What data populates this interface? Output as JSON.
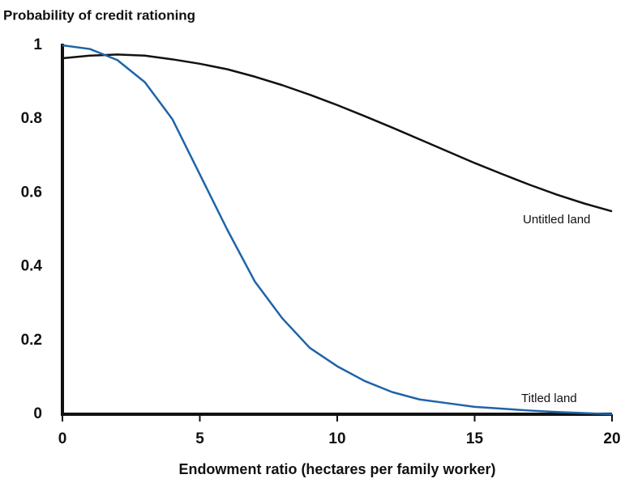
{
  "chart_data": {
    "type": "line",
    "title": "Probability of credit rationing",
    "x_label": "Endowment ratio (hectares per family worker)",
    "x": [
      0,
      1,
      2,
      3,
      4,
      5,
      6,
      7,
      8,
      9,
      10,
      11,
      12,
      13,
      14,
      15,
      16,
      17,
      18,
      19,
      20
    ],
    "series": [
      {
        "name": "Untitled land",
        "color": "#111111",
        "values": [
          0.965,
          0.972,
          0.975,
          0.972,
          0.962,
          0.95,
          0.935,
          0.915,
          0.892,
          0.866,
          0.838,
          0.808,
          0.777,
          0.745,
          0.713,
          0.681,
          0.651,
          0.622,
          0.595,
          0.571,
          0.55
        ]
      },
      {
        "name": "Titled land",
        "color": "#1f64a8",
        "values": [
          1.0,
          0.99,
          0.96,
          0.9,
          0.8,
          0.65,
          0.5,
          0.36,
          0.26,
          0.18,
          0.13,
          0.09,
          0.06,
          0.04,
          0.03,
          0.02,
          0.015,
          0.01,
          0.006,
          0.003,
          0.0
        ]
      }
    ],
    "xlim": [
      0,
      20
    ],
    "xticks": [
      0,
      5,
      10,
      15,
      20
    ],
    "ylim": [
      0,
      1
    ],
    "yticks": [
      0,
      0.2,
      0.4,
      0.6,
      0.8,
      1
    ]
  }
}
